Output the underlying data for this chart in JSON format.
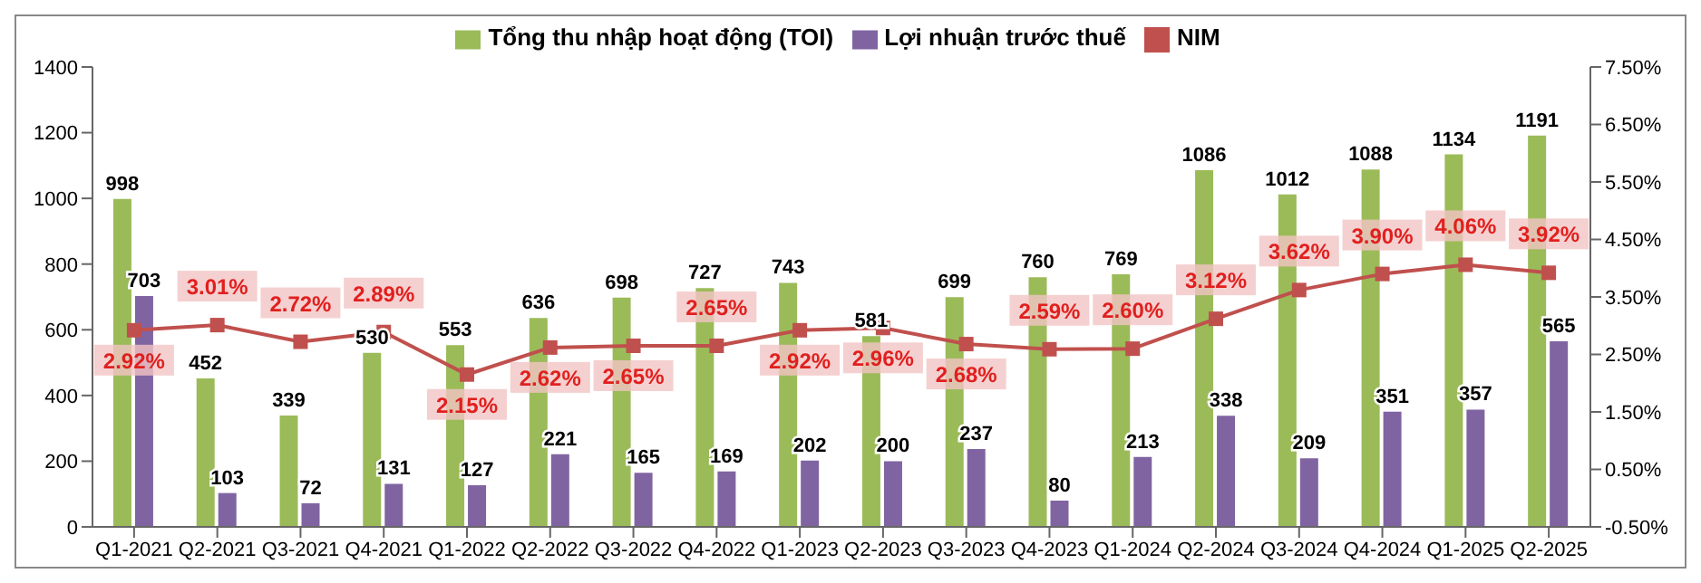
{
  "chart_data": {
    "type": "bar",
    "categories": [
      "Q1-2021",
      "Q2-2021",
      "Q3-2021",
      "Q4-2021",
      "Q1-2022",
      "Q2-2022",
      "Q3-2022",
      "Q4-2022",
      "Q1-2023",
      "Q2-2023",
      "Q3-2023",
      "Q4-2023",
      "Q1-2024",
      "Q2-2024",
      "Q3-2024",
      "Q4-2024",
      "Q1-2025",
      "Q2-2025"
    ],
    "series": [
      {
        "name": "Tổng thu nhập hoạt động (TOI)",
        "type": "bar",
        "color": "#9bbb59",
        "data_labels": true,
        "values": [
          998,
          452,
          339,
          530,
          553,
          636,
          698,
          727,
          743,
          581,
          699,
          760,
          769,
          1086,
          1012,
          1088,
          1134,
          1191
        ]
      },
      {
        "name": "Lợi nhuận trước thuế",
        "type": "bar",
        "color": "#8064a2",
        "data_labels": true,
        "values": [
          703,
          103,
          72,
          131,
          127,
          221,
          165,
          169,
          202,
          200,
          237,
          80,
          213,
          338,
          209,
          351,
          357,
          565
        ]
      },
      {
        "name": "NIM",
        "type": "line",
        "axis": "y2",
        "color": "#c0504d",
        "marker": "square",
        "values": [
          2.92,
          3.01,
          2.72,
          2.89,
          2.15,
          2.62,
          2.65,
          2.65,
          2.92,
          2.96,
          2.68,
          2.59,
          2.6,
          3.12,
          3.62,
          3.9,
          4.06,
          3.92
        ],
        "value_labels": [
          "2.92%",
          "3.01%",
          "2.72%",
          "2.89%",
          "2.15%",
          "2.62%",
          "2.65%",
          "2.65%",
          "2.92%",
          "2.96%",
          "2.68%",
          "2.59%",
          "2.60%",
          "3.12%",
          "3.62%",
          "3.90%",
          "4.06%",
          "3.92%"
        ]
      }
    ],
    "ylim": [
      0,
      1400
    ],
    "yticks": [
      0,
      200,
      400,
      600,
      800,
      1000,
      1200,
      1400
    ],
    "y2lim": [
      -0.5,
      7.5
    ],
    "y2ticks": [
      {
        "value": -0.5,
        "label": "-0.50%"
      },
      {
        "value": 0.5,
        "label": "0.50%"
      },
      {
        "value": 1.5,
        "label": "1.50%"
      },
      {
        "value": 2.5,
        "label": "2.50%"
      },
      {
        "value": 3.5,
        "label": "3.50%"
      },
      {
        "value": 4.5,
        "label": "4.50%"
      },
      {
        "value": 5.5,
        "label": "5.50%"
      },
      {
        "value": 6.5,
        "label": "6.50%"
      },
      {
        "value": 7.5,
        "label": "7.50%"
      }
    ],
    "legend": "top",
    "grid": false
  }
}
